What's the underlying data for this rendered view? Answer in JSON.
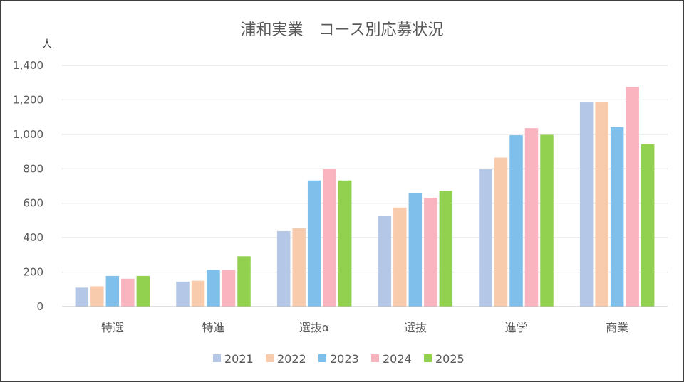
{
  "chart_data": {
    "type": "bar",
    "title": "浦和実業　コース別応募状況",
    "ylabel": "人",
    "xlabel": "",
    "ylim": [
      0,
      1400
    ],
    "yticks": [
      0,
      200,
      400,
      600,
      800,
      1000,
      1200,
      1400
    ],
    "ytick_labels": [
      "0",
      "200",
      "400",
      "600",
      "800",
      "1,000",
      "1,200",
      "1,400"
    ],
    "grid": true,
    "legend_position": "bottom",
    "categories": [
      "特選",
      "特進",
      "選抜α",
      "選抜",
      "進学",
      "商業"
    ],
    "series": [
      {
        "name": "2021",
        "color": "#b4c7e7",
        "values": [
          110,
          145,
          438,
          525,
          797,
          1185
        ]
      },
      {
        "name": "2022",
        "color": "#f8cbad",
        "values": [
          118,
          150,
          455,
          575,
          865,
          1185
        ]
      },
      {
        "name": "2023",
        "color": "#7fbfeb",
        "values": [
          178,
          213,
          732,
          658,
          995,
          1042
        ]
      },
      {
        "name": "2024",
        "color": "#f9b4c0",
        "values": [
          162,
          213,
          797,
          632,
          1036,
          1275
        ]
      },
      {
        "name": "2025",
        "color": "#92d050",
        "values": [
          178,
          292,
          732,
          672,
          997,
          942
        ]
      }
    ]
  }
}
